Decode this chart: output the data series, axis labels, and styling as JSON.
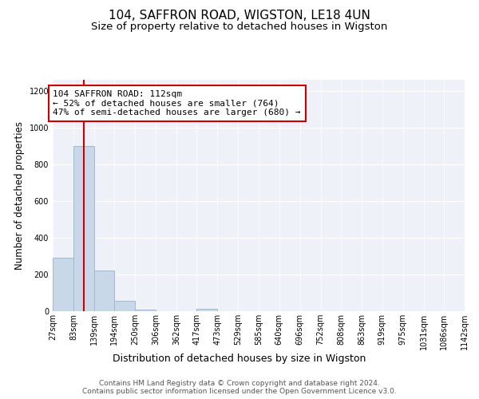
{
  "title": "104, SAFFRON ROAD, WIGSTON, LE18 4UN",
  "subtitle": "Size of property relative to detached houses in Wigston",
  "xlabel": "Distribution of detached houses by size in Wigston",
  "ylabel": "Number of detached properties",
  "bin_edges": [
    27,
    83,
    139,
    194,
    250,
    306,
    362,
    417,
    473,
    529,
    585,
    640,
    696,
    752,
    808,
    863,
    919,
    975,
    1031,
    1086,
    1142
  ],
  "bar_heights": [
    290,
    900,
    220,
    55,
    10,
    0,
    0,
    15,
    0,
    0,
    0,
    0,
    0,
    0,
    0,
    0,
    0,
    0,
    0,
    0
  ],
  "bar_color": "#c8d8e8",
  "bar_edge_color": "#a0b8d0",
  "property_size": 112,
  "red_line_color": "#cc0000",
  "annotation_text": "104 SAFFRON ROAD: 112sqm\n← 52% of detached houses are smaller (764)\n47% of semi-detached houses are larger (680) →",
  "annotation_box_color": "white",
  "annotation_box_edge_color": "#cc0000",
  "ylim": [
    0,
    1260
  ],
  "yticks": [
    0,
    200,
    400,
    600,
    800,
    1000,
    1200
  ],
  "background_color": "#eef2f8",
  "grid_color": "white",
  "footer_line1": "Contains HM Land Registry data © Crown copyright and database right 2024.",
  "footer_line2": "Contains public sector information licensed under the Open Government Licence v3.0.",
  "title_fontsize": 11,
  "subtitle_fontsize": 9.5,
  "xlabel_fontsize": 9,
  "ylabel_fontsize": 8.5,
  "tick_fontsize": 7,
  "annotation_fontsize": 8,
  "footer_fontsize": 6.5
}
